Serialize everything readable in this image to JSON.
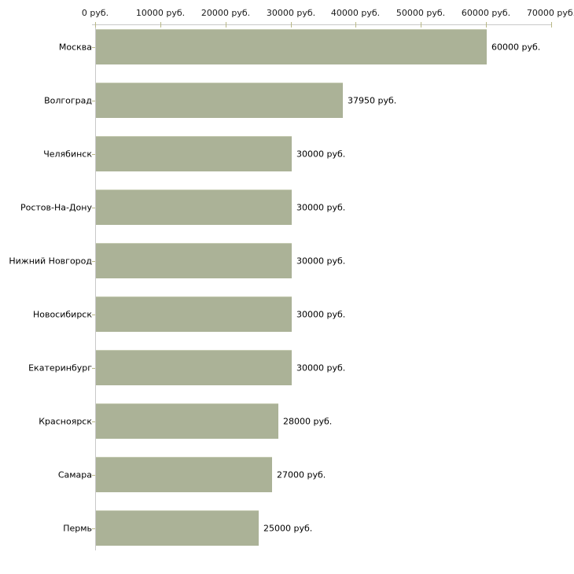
{
  "chart_data": {
    "type": "bar",
    "orientation": "horizontal",
    "title": "",
    "xlabel": "",
    "ylabel": "",
    "categories": [
      "Москва",
      "Волгоград",
      "Челябинск",
      "Ростов-На-Дону",
      "Нижний Новгород",
      "Новосибирск",
      "Екатеринбург",
      "Красноярск",
      "Самара",
      "Пермь"
    ],
    "values": [
      60000,
      37950,
      30000,
      30000,
      30000,
      30000,
      30000,
      28000,
      27000,
      25000
    ],
    "value_labels": [
      "60000 руб.",
      "37950 руб.",
      "30000 руб.",
      "30000 руб.",
      "30000 руб.",
      "30000 руб.",
      "30000 руб.",
      "28000 руб.",
      "27000 руб.",
      "25000 руб."
    ],
    "x_axis": {
      "position": "top",
      "range": [
        0,
        70000
      ],
      "ticks": [
        0,
        10000,
        20000,
        30000,
        40000,
        50000,
        60000,
        70000
      ],
      "tick_labels": [
        "0 руб.",
        "10000 руб.",
        "20000 руб.",
        "30000 руб.",
        "40000 руб.",
        "50000 руб.",
        "60000 руб.",
        "70000 руб."
      ]
    },
    "grid": false,
    "legend": false,
    "colors": {
      "bar_fill": "#abb297",
      "bar_highlight": "#c7ccb3",
      "axis_line": "#c9c9c9",
      "tick_mark": "#b9b886",
      "text": "#000000",
      "background": "#ffffff"
    }
  }
}
